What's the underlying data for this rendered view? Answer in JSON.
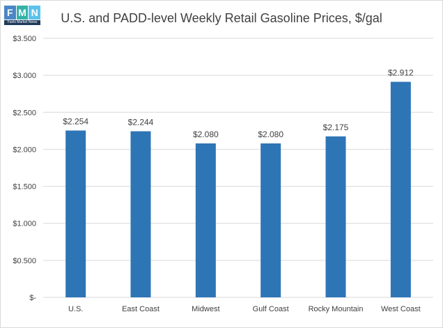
{
  "logo": {
    "letters": [
      "F",
      "M",
      "N"
    ],
    "caption": "Fuels Market News"
  },
  "chart_data": {
    "type": "bar",
    "title": "U.S. and PADD-level Weekly Retail Gasoline Prices, $/gal",
    "categories": [
      "U.S.",
      "East Coast",
      "Midwest",
      "Gulf Coast",
      "Rocky Mountain",
      "West Coast"
    ],
    "values": [
      2.254,
      2.244,
      2.08,
      2.08,
      2.175,
      2.912
    ],
    "data_labels": [
      "$2.254",
      "$2.244",
      "$2.080",
      "$2.080",
      "$2.175",
      "$2.912"
    ],
    "y_ticks": [
      0,
      0.5,
      1.0,
      1.5,
      2.0,
      2.5,
      3.0,
      3.5
    ],
    "y_tick_labels": [
      "$-",
      "$0.500",
      "$1.000",
      "$1.500",
      "$2.000",
      "$2.500",
      "$3.000",
      "$3.500"
    ],
    "ylim": [
      0,
      3.5
    ],
    "xlabel": "",
    "ylabel": "",
    "grid": true,
    "legend": "none",
    "colors": {
      "bar": "#2e75b6",
      "grid": "#d9d9d9",
      "text": "#404040",
      "logo_tiles": [
        "#4a86c5",
        "#35b2a8",
        "#5cc2ec"
      ]
    }
  }
}
